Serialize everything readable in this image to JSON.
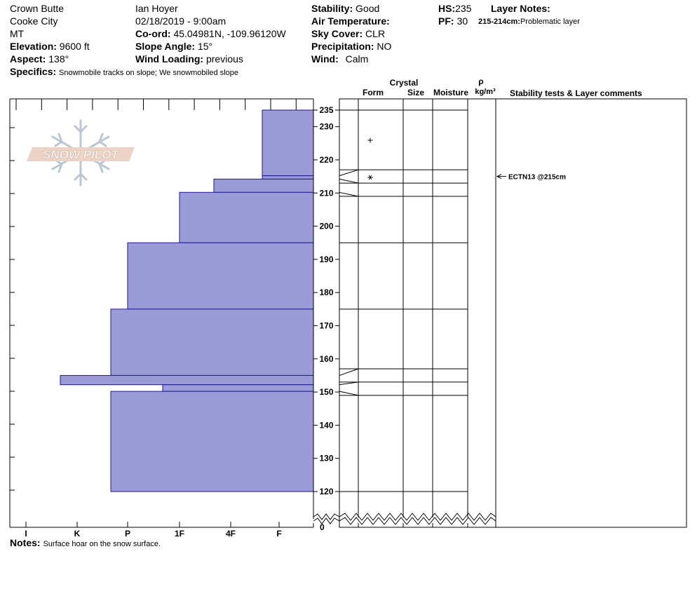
{
  "header": {
    "location_name": "Crown Butte",
    "range": "Cooke City",
    "state": "MT",
    "elevation_label": "Elevation:",
    "elevation": "9600 ft",
    "aspect_label": "Aspect:",
    "aspect": "138°",
    "specifics_label": "Specifics:",
    "specifics": "Snowmobile tracks on slope; We snowmobiled slope",
    "observer": "Ian Hoyer",
    "datetime": "02/18/2019 - 9:00am",
    "coord_label": "Co-ord:",
    "coord": "45.04981N, -109.96120W",
    "slope_label": "Slope Angle:",
    "slope": "15°",
    "wind_loading_label": "Wind Loading:",
    "wind_loading": "previous",
    "stability_label": "Stability:",
    "stability": "Good",
    "air_temp_label": "Air Temperature:",
    "air_temp": "",
    "sky_label": "Sky Cover:",
    "sky": "CLR",
    "precip_label": "Precipitation:",
    "precip": "NO",
    "wind_label": "Wind:",
    "wind": "Calm",
    "hs_label": "HS:",
    "hs": "235",
    "pf_label": "PF:",
    "pf": "30",
    "layer_notes_label": "Layer Notes:",
    "layer_note_range": "215-214cm:",
    "layer_note_text": "Problematic layer"
  },
  "logo": {
    "text": "SNOW PILOT"
  },
  "columns": {
    "crystal": "Crystal",
    "form": "Form",
    "size": "Size",
    "moisture": "Moisture",
    "rho": "ρ",
    "density_unit": "kg/m³",
    "stability_tests": "Stability tests & Layer comments"
  },
  "notes": {
    "label": "Notes:",
    "text": "Surface hoar on the snow surface."
  },
  "chart_data": {
    "type": "bar",
    "orientation": "horizontal",
    "x_categories": [
      "I",
      "K",
      "P",
      "1F",
      "4F",
      "F"
    ],
    "height_ticks": [
      120,
      130,
      140,
      150,
      160,
      170,
      180,
      190,
      200,
      210,
      220,
      230,
      235
    ],
    "height_range_cm": [
      0,
      235
    ],
    "axis_break_below_cm": 118,
    "hardness_layers": [
      {
        "top": 235,
        "bottom": 215.2,
        "hardness": "F+"
      },
      {
        "top": 215.2,
        "bottom": 214.2,
        "hardness": "F+"
      },
      {
        "top": 214.2,
        "bottom": 210.2,
        "hardness": "4F+"
      },
      {
        "top": 210.2,
        "bottom": 195,
        "hardness": "1F"
      },
      {
        "top": 195,
        "bottom": 175,
        "hardness": "P"
      },
      {
        "top": 175,
        "bottom": 155,
        "hardness": "P+"
      },
      {
        "top": 155,
        "bottom": 152.2,
        "hardness": "K+"
      },
      {
        "top": 152.2,
        "bottom": 150.2,
        "hardness": "1F+"
      },
      {
        "top": 150.2,
        "bottom": 120,
        "hardness": "P+"
      }
    ],
    "layer_boundaries_cm": [
      235,
      217,
      213,
      209,
      195,
      175,
      157,
      153,
      149,
      120
    ],
    "crystal_symbols": [
      {
        "height": 226,
        "symbol": "+"
      },
      {
        "height": 215,
        "symbol": "⚹"
      }
    ],
    "stability_tests": [
      {
        "height": 215,
        "label": "ECTN13 @215cm"
      }
    ]
  }
}
